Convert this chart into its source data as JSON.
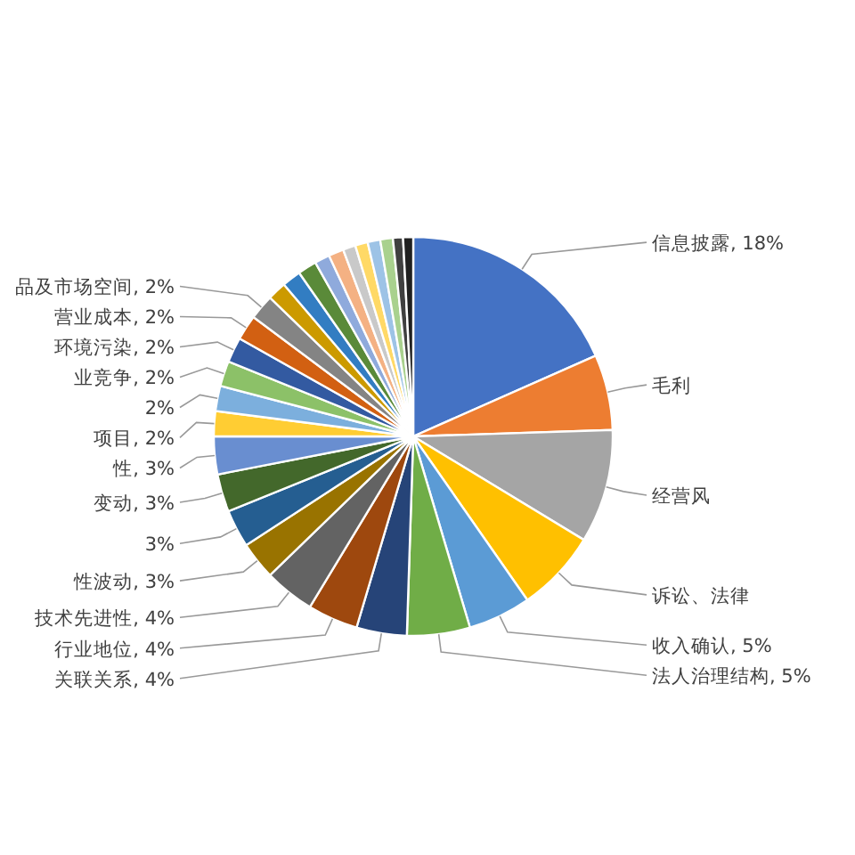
{
  "chart_data": {
    "type": "pie",
    "categories": [
      "信息披露",
      "毛利",
      "经营风",
      "诉讼、法律",
      "收入确认",
      "法人治理结构",
      "关联关系",
      "行业地位",
      "技术先进性",
      "性波动",
      null,
      "变动",
      "性",
      "项目",
      null,
      "业竞争",
      "环境污染",
      "营业成本",
      "品及市场空间",
      null,
      null,
      null,
      null,
      null,
      null,
      null,
      null,
      null,
      null,
      null
    ],
    "values": [
      18,
      6,
      9,
      6.5,
      5,
      5,
      4,
      4,
      4,
      3,
      3,
      3,
      3,
      2,
      2,
      2,
      2,
      2,
      2,
      1.5,
      1.5,
      1.5,
      1.2,
      1.2,
      1,
      1,
      1,
      1,
      0.8,
      0.8
    ],
    "value_labels": [
      "18%",
      null,
      null,
      null,
      "5%",
      "5%",
      "4%",
      "4%",
      "4%",
      "3%",
      "3%",
      "3%",
      "3%",
      "2%",
      "2%",
      "2%",
      "2%",
      "2%",
      "2%",
      null,
      null,
      null,
      null,
      null,
      null,
      null,
      null,
      null,
      null,
      null
    ],
    "colors": [
      "#4472c4",
      "#ed7d31",
      "#a5a5a5",
      "#ffc000",
      "#5b9bd5",
      "#70ad47",
      "#264478",
      "#9e480e",
      "#636363",
      "#997300",
      "#255e91",
      "#43682b",
      "#698ed0",
      "#ffcd33",
      "#7cafdd",
      "#8cc168",
      "#335aa1",
      "#d26012",
      "#848484",
      "#cc9a00",
      "#327dc2",
      "#5a8a39",
      "#8faadc",
      "#f4b183",
      "#c9c9c9",
      "#ffd966",
      "#9dc3e6",
      "#a9d18e",
      "#404040",
      "#202020"
    ]
  }
}
